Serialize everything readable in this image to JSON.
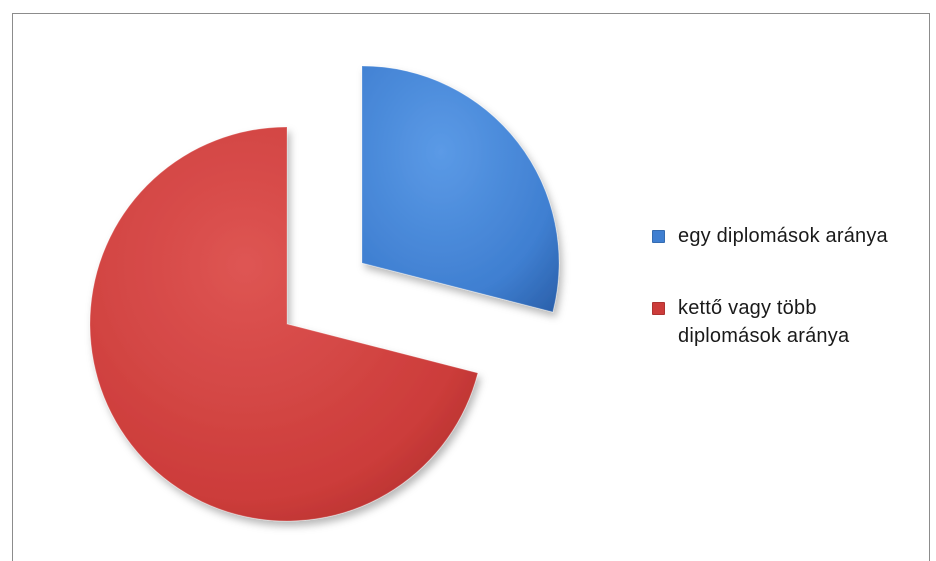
{
  "chart_data": {
    "type": "pie",
    "title": "",
    "exploded": true,
    "start_angle_deg": 0,
    "direction": "clockwise",
    "slices": [
      {
        "label": "egy diplomások aránya",
        "value": 29,
        "color": "#3f7fd1"
      },
      {
        "label": "kettő vagy több diplomások aránya",
        "value": 71,
        "color": "#cc3c3a"
      }
    ],
    "legend": {
      "position": "right",
      "lines": [
        [
          "egy diplomások aránya"
        ],
        [
          "kettő vagy több",
          "diplomások aránya"
        ]
      ]
    }
  }
}
